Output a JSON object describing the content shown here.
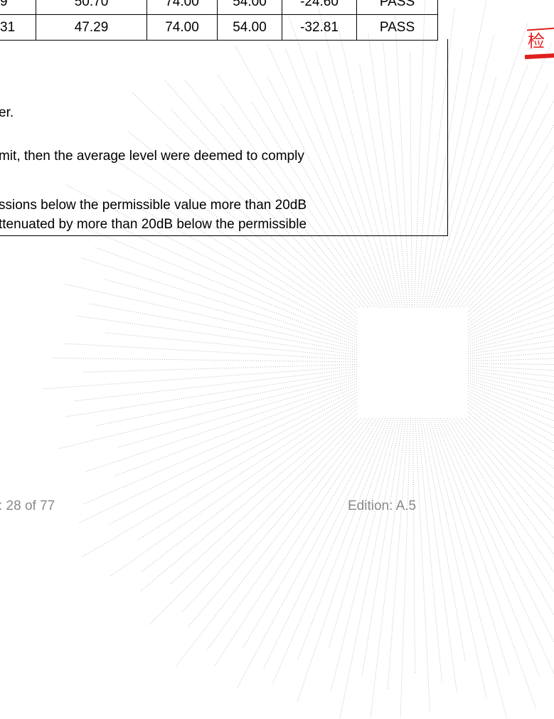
{
  "table": {
    "rows": [
      [
        "9",
        "50.70",
        "74.00",
        "54.00",
        "-24.60",
        "PASS"
      ],
      [
        "31",
        "47.29",
        "74.00",
        "54.00",
        "-32.81",
        "PASS"
      ]
    ]
  },
  "notes": {
    "line1": "er.",
    "line2": "mit, then the average level were deemed to comply",
    "line3": "ssions below the permissible value more than 20dB",
    "line4": "ttenuated by more than 20dB below the permissible"
  },
  "footer": {
    "page": ": 28 of 77",
    "edition": "Edition:  A.5"
  },
  "stamp": {
    "char": "检"
  },
  "colors": {
    "stamp": "#e0201e",
    "footer_text": "#8a8a8a",
    "watermark": "#bdbdbd"
  }
}
